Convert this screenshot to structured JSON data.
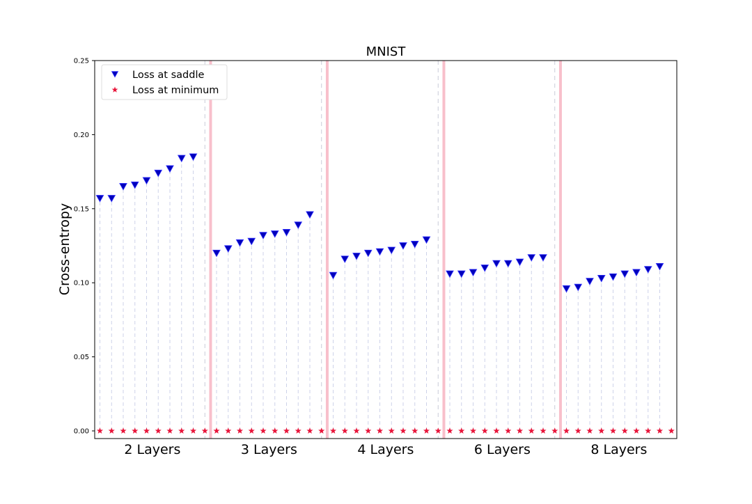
{
  "chart_data": {
    "type": "scatter",
    "title": "MNIST",
    "xlabel": "",
    "ylabel": "Cross-entropy",
    "ylim": [
      0,
      0.25
    ],
    "yticks": [
      "0.00",
      "0.05",
      "0.10",
      "0.15",
      "0.20",
      "0.25"
    ],
    "grid": false,
    "legend_position": "top-left",
    "groups": [
      {
        "label": "2 Layers",
        "saddle": [
          0.157,
          0.157,
          0.165,
          0.166,
          0.169,
          0.174,
          0.177,
          0.184,
          0.185
        ],
        "minimum": [
          0,
          0,
          0,
          0,
          0,
          0,
          0,
          0,
          0,
          0
        ]
      },
      {
        "label": "3 Layers",
        "saddle": [
          0.12,
          0.123,
          0.127,
          0.128,
          0.132,
          0.133,
          0.134,
          0.139,
          0.146
        ],
        "minimum": [
          0,
          0,
          0,
          0,
          0,
          0,
          0,
          0,
          0,
          0
        ]
      },
      {
        "label": "4 Layers",
        "saddle": [
          0.105,
          0.116,
          0.118,
          0.12,
          0.121,
          0.122,
          0.125,
          0.126,
          0.129
        ],
        "minimum": [
          0,
          0,
          0,
          0,
          0,
          0,
          0,
          0,
          0,
          0
        ]
      },
      {
        "label": "6 Layers",
        "saddle": [
          0.106,
          0.106,
          0.107,
          0.11,
          0.113,
          0.113,
          0.114,
          0.117,
          0.117
        ],
        "minimum": [
          0,
          0,
          0,
          0,
          0,
          0,
          0,
          0,
          0,
          0
        ]
      },
      {
        "label": "8 Layers",
        "saddle": [
          0.096,
          0.097,
          0.101,
          0.103,
          0.104,
          0.106,
          0.107,
          0.109,
          0.111
        ],
        "minimum": [
          0,
          0,
          0,
          0,
          0,
          0,
          0,
          0,
          0,
          0
        ]
      }
    ],
    "series": [
      {
        "name": "Loss at saddle",
        "marker": "triangle-down",
        "color": "#0000bb"
      },
      {
        "name": "Loss at minimum",
        "marker": "star",
        "color": "#e8153a"
      }
    ],
    "separator_color": "#f7b5c2",
    "stem_color": "#b8c0e0"
  }
}
